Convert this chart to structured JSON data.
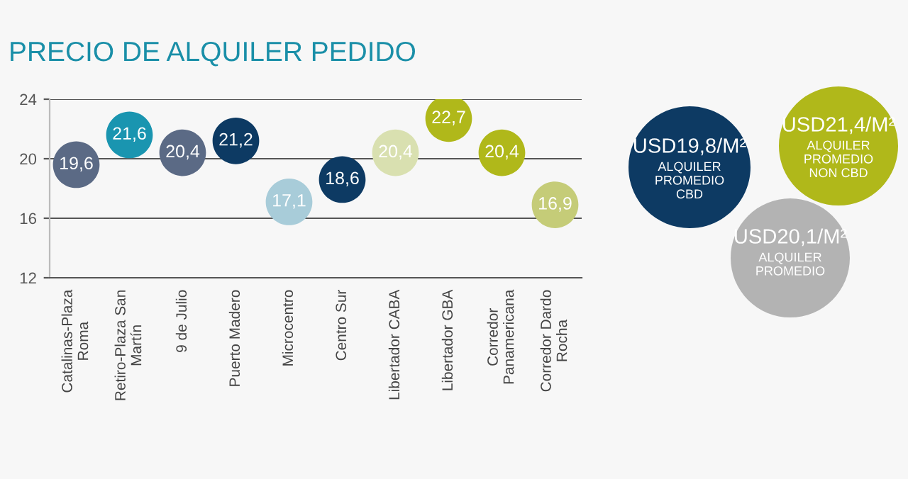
{
  "chart_data": [
    {
      "type": "scatter",
      "title": "PRECIO DE ALQUILER PEDIDO",
      "categories": [
        "Catalinas-Plaza Roma",
        "Retiro-Plaza San Martín",
        "9 de Julio",
        "Puerto Madero",
        "Microcentro",
        "Centro Sur",
        "Libertador CABA",
        "Libertador GBA",
        "Corredor Panamericana",
        "Corredor Dardo Rocha"
      ],
      "values": [
        19.6,
        21.6,
        20.4,
        21.2,
        17.1,
        18.6,
        20.4,
        22.7,
        20.4,
        16.9
      ],
      "value_labels": [
        "19,6",
        "21,6",
        "20,4",
        "21,2",
        "17,1",
        "18,6",
        "20,4",
        "22,7",
        "20,4",
        "16,9"
      ],
      "colors": [
        "#5b6a85",
        "#1a95b0",
        "#5b6a85",
        "#0d3a63",
        "#a8ccd9",
        "#0d3a63",
        "#d9e0b0",
        "#b0b81a",
        "#b0b81a",
        "#c5cc78"
      ],
      "ylim": [
        12,
        24
      ],
      "yticks": [
        12,
        16,
        20,
        24
      ],
      "grid": "y",
      "marker": "circle",
      "legend": false
    },
    {
      "type": "other",
      "annotations": [
        "USD19,8/M²",
        "ALQUILER PROMEDIO CBD",
        "USD21,4/M²",
        "ALQUILER PROMEDIO NON CBD",
        "USD20,1/M²",
        "ALQUILER PROMEDIO"
      ],
      "colors": [
        "#0d3a63",
        "#b0b81a",
        "#b3b3b3"
      ]
    }
  ]
}
